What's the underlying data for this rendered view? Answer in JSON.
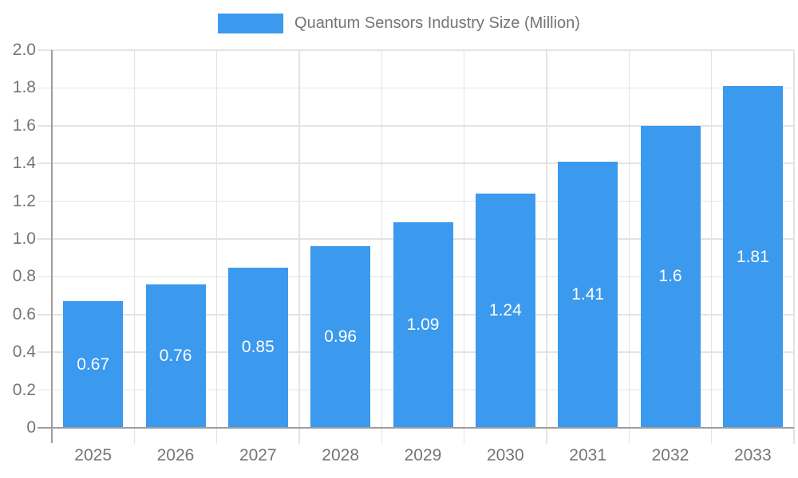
{
  "chart_data": {
    "type": "bar",
    "title": "Quantum Sensors Industry Size (Million)",
    "categories": [
      "2025",
      "2026",
      "2027",
      "2028",
      "2029",
      "2030",
      "2031",
      "2032",
      "2033"
    ],
    "values": [
      0.67,
      0.76,
      0.85,
      0.96,
      1.09,
      1.24,
      1.41,
      1.6,
      1.81
    ],
    "value_labels": [
      "0.67",
      "0.76",
      "0.85",
      "0.96",
      "1.09",
      "1.24",
      "1.41",
      "1.6",
      "1.81"
    ],
    "xlabel": "",
    "ylabel": "",
    "ylim": [
      0,
      2
    ],
    "ytick_step": 0.2,
    "ytick_labels": [
      "0",
      "0.2",
      "0.4",
      "0.6",
      "0.8",
      "1.0",
      "1.2",
      "1.4",
      "1.6",
      "1.8",
      "2.0"
    ],
    "grid": true,
    "legend_position": "top-center",
    "colors": {
      "bar": "#3B99EE",
      "value_label": "#FFFFFF",
      "gridline": "#E3E3E3",
      "axis": "#9E9E9E",
      "tick_label": "#757575",
      "legend_text": "#757575",
      "background": "#FFFFFF"
    }
  }
}
